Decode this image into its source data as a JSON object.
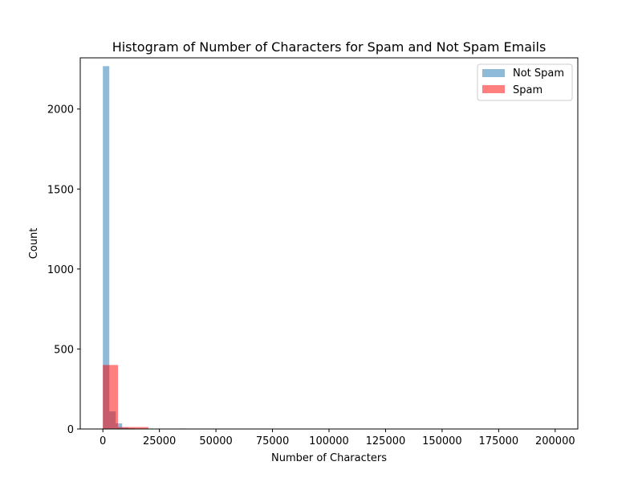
{
  "chart_data": {
    "type": "bar",
    "title": "Histogram of Number of Characters for Spam and Not Spam Emails",
    "xlabel": "Number of Characters",
    "ylabel": "Count",
    "xlim": [
      -10000,
      210000
    ],
    "ylim": [
      0,
      2320
    ],
    "xticks": [
      0,
      25000,
      50000,
      75000,
      100000,
      125000,
      150000,
      175000,
      200000
    ],
    "yticks": [
      0,
      500,
      1000,
      1500,
      2000
    ],
    "legend_position": "top-right",
    "grid": false,
    "series": [
      {
        "name": "Not Spam",
        "color": "#1f77b4",
        "opacity": 0.5,
        "bin_edges": [
          0,
          2850,
          5700,
          8550,
          11400,
          14250,
          17100,
          19950,
          22800,
          25650,
          28500,
          31350,
          34200,
          37050
        ],
        "counts": [
          2268,
          110,
          35,
          8,
          4,
          2,
          1,
          1,
          1,
          1,
          1,
          1,
          3
        ]
      },
      {
        "name": "Spam",
        "color": "#ff0000",
        "opacity": 0.5,
        "bin_edges": [
          0,
          6700,
          13400,
          20100
        ],
        "counts": [
          400,
          12,
          12
        ]
      }
    ]
  }
}
